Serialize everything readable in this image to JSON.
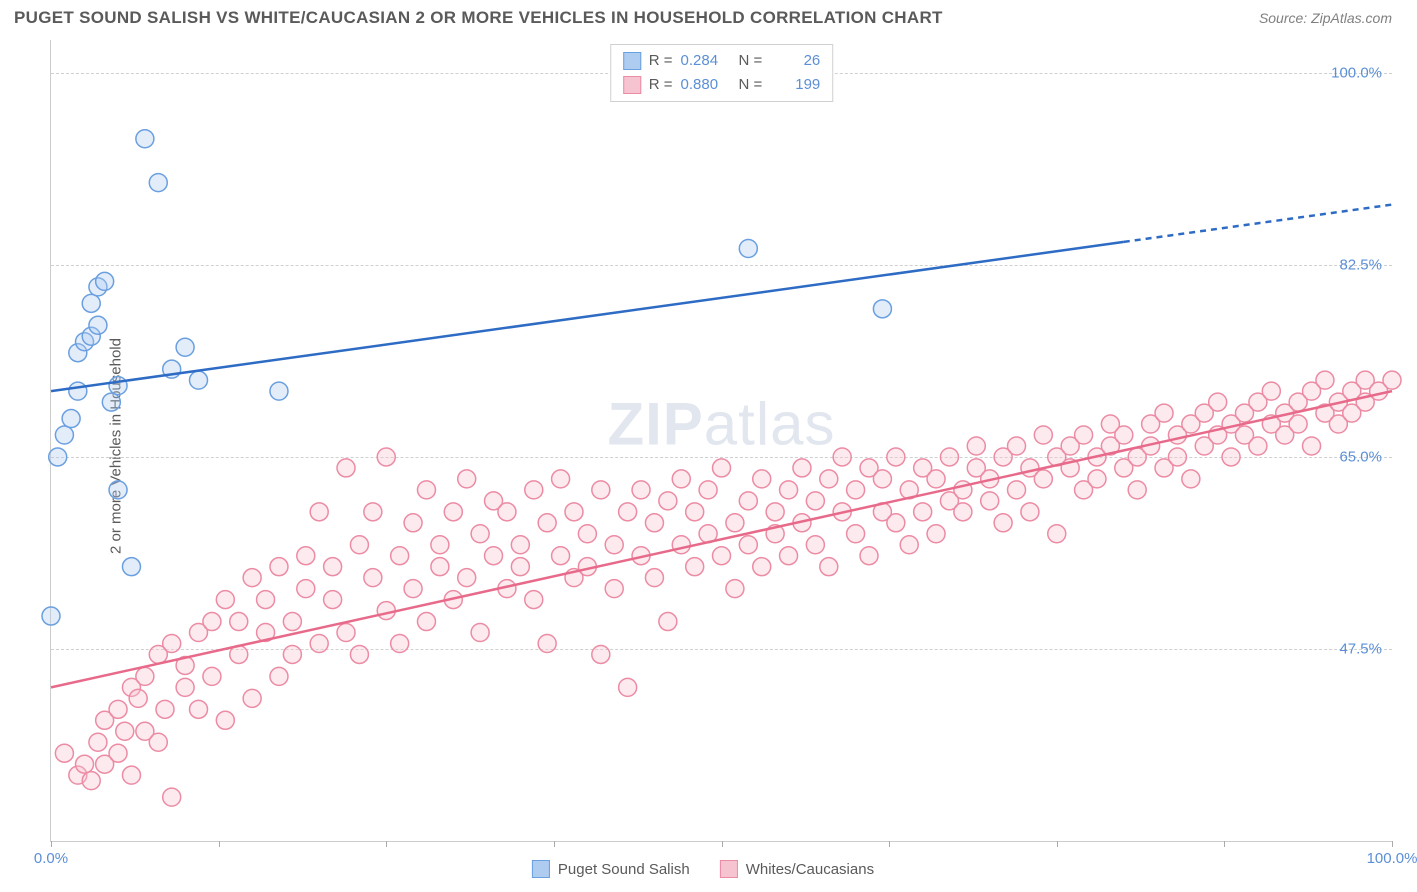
{
  "title": "PUGET SOUND SALISH VS WHITE/CAUCASIAN 2 OR MORE VEHICLES IN HOUSEHOLD CORRELATION CHART",
  "source": "Source: ZipAtlas.com",
  "watermark_bold": "ZIP",
  "watermark_light": "atlas",
  "chart": {
    "type": "scatter",
    "background_color": "#ffffff",
    "grid_color": "#d0d0d0",
    "axis_color": "#cccccc",
    "tick_label_color": "#5b8fd6",
    "ylabel": "2 or more Vehicles in Household",
    "xlim": [
      0,
      100
    ],
    "ylim": [
      30,
      103
    ],
    "x_ticks_minor": [
      0,
      12.5,
      25,
      37.5,
      50,
      62.5,
      75,
      87.5,
      100
    ],
    "x_tick_labels": [
      {
        "pos": 0,
        "label": "0.0%"
      },
      {
        "pos": 100,
        "label": "100.0%"
      }
    ],
    "y_gridlines": [
      47.5,
      65.0,
      82.5,
      100.0
    ],
    "y_tick_labels": [
      {
        "pos": 47.5,
        "label": "47.5%"
      },
      {
        "pos": 65.0,
        "label": "65.0%"
      },
      {
        "pos": 82.5,
        "label": "82.5%"
      },
      {
        "pos": 100.0,
        "label": "100.0%"
      }
    ],
    "marker_radius": 9,
    "line_width": 2.5,
    "series": [
      {
        "name": "Puget Sound Salish",
        "fill": "#aeccf0",
        "stroke": "#6a9fe0",
        "line_color": "#2d6bc4",
        "r_value": "0.284",
        "n_value": "26",
        "trend": {
          "x1": 0,
          "y1": 71,
          "x2": 100,
          "y2": 88,
          "solid_until_x": 80
        },
        "points": [
          [
            0,
            50.5
          ],
          [
            0.5,
            65
          ],
          [
            1,
            67
          ],
          [
            1.5,
            68.5
          ],
          [
            2,
            71
          ],
          [
            2,
            74.5
          ],
          [
            2.5,
            75.5
          ],
          [
            3,
            76
          ],
          [
            3.5,
            77
          ],
          [
            3,
            79
          ],
          [
            3.5,
            80.5
          ],
          [
            4,
            81
          ],
          [
            4.5,
            70
          ],
          [
            5,
            71.5
          ],
          [
            5,
            62
          ],
          [
            6,
            55
          ],
          [
            7,
            94
          ],
          [
            8,
            90
          ],
          [
            9,
            73
          ],
          [
            10,
            75
          ],
          [
            11,
            72
          ],
          [
            17,
            71
          ],
          [
            52,
            84
          ],
          [
            62,
            78.5
          ]
        ]
      },
      {
        "name": "Whites/Caucasians",
        "fill": "#f6c4d0",
        "stroke": "#ec8ba4",
        "line_color": "#e86a8a",
        "r_value": "0.880",
        "n_value": "199",
        "trend": {
          "x1": 0,
          "y1": 44,
          "x2": 100,
          "y2": 71,
          "solid_until_x": 100
        },
        "points": [
          [
            1,
            38
          ],
          [
            2,
            36
          ],
          [
            2.5,
            37
          ],
          [
            3,
            35.5
          ],
          [
            3.5,
            39
          ],
          [
            4,
            37
          ],
          [
            4,
            41
          ],
          [
            5,
            38
          ],
          [
            5,
            42
          ],
          [
            5.5,
            40
          ],
          [
            6,
            36
          ],
          [
            6,
            44
          ],
          [
            6.5,
            43
          ],
          [
            7,
            40
          ],
          [
            7,
            45
          ],
          [
            8,
            39
          ],
          [
            8,
            47
          ],
          [
            8.5,
            42
          ],
          [
            9,
            34
          ],
          [
            9,
            48
          ],
          [
            10,
            46
          ],
          [
            10,
            44
          ],
          [
            11,
            42
          ],
          [
            11,
            49
          ],
          [
            12,
            50
          ],
          [
            12,
            45
          ],
          [
            13,
            41
          ],
          [
            13,
            52
          ],
          [
            14,
            47
          ],
          [
            14,
            50
          ],
          [
            15,
            43
          ],
          [
            15,
            54
          ],
          [
            16,
            49
          ],
          [
            16,
            52
          ],
          [
            17,
            45
          ],
          [
            17,
            55
          ],
          [
            18,
            50
          ],
          [
            18,
            47
          ],
          [
            19,
            53
          ],
          [
            19,
            56
          ],
          [
            20,
            48
          ],
          [
            20,
            60
          ],
          [
            21,
            52
          ],
          [
            21,
            55
          ],
          [
            22,
            49
          ],
          [
            22,
            64
          ],
          [
            23,
            57
          ],
          [
            23,
            47
          ],
          [
            24,
            54
          ],
          [
            24,
            60
          ],
          [
            25,
            51
          ],
          [
            25,
            65
          ],
          [
            26,
            56
          ],
          [
            26,
            48
          ],
          [
            27,
            59
          ],
          [
            27,
            53
          ],
          [
            28,
            62
          ],
          [
            28,
            50
          ],
          [
            29,
            57
          ],
          [
            29,
            55
          ],
          [
            30,
            60
          ],
          [
            30,
            52
          ],
          [
            31,
            54
          ],
          [
            31,
            63
          ],
          [
            32,
            49
          ],
          [
            32,
            58
          ],
          [
            33,
            56
          ],
          [
            33,
            61
          ],
          [
            34,
            53
          ],
          [
            34,
            60
          ],
          [
            35,
            57
          ],
          [
            35,
            55
          ],
          [
            36,
            52
          ],
          [
            36,
            62
          ],
          [
            37,
            59
          ],
          [
            37,
            48
          ],
          [
            38,
            56
          ],
          [
            38,
            63
          ],
          [
            39,
            54
          ],
          [
            39,
            60
          ],
          [
            40,
            58
          ],
          [
            40,
            55
          ],
          [
            41,
            62
          ],
          [
            41,
            47
          ],
          [
            42,
            57
          ],
          [
            42,
            53
          ],
          [
            43,
            60
          ],
          [
            43,
            44
          ],
          [
            44,
            56
          ],
          [
            44,
            62
          ],
          [
            45,
            59
          ],
          [
            45,
            54
          ],
          [
            46,
            61
          ],
          [
            46,
            50
          ],
          [
            47,
            57
          ],
          [
            47,
            63
          ],
          [
            48,
            55
          ],
          [
            48,
            60
          ],
          [
            49,
            58
          ],
          [
            49,
            62
          ],
          [
            50,
            56
          ],
          [
            50,
            64
          ],
          [
            51,
            59
          ],
          [
            51,
            53
          ],
          [
            52,
            61
          ],
          [
            52,
            57
          ],
          [
            53,
            63
          ],
          [
            53,
            55
          ],
          [
            54,
            60
          ],
          [
            54,
            58
          ],
          [
            55,
            62
          ],
          [
            55,
            56
          ],
          [
            56,
            64
          ],
          [
            56,
            59
          ],
          [
            57,
            61
          ],
          [
            57,
            57
          ],
          [
            58,
            63
          ],
          [
            58,
            55
          ],
          [
            59,
            60
          ],
          [
            59,
            65
          ],
          [
            60,
            62
          ],
          [
            60,
            58
          ],
          [
            61,
            64
          ],
          [
            61,
            56
          ],
          [
            62,
            63
          ],
          [
            62,
            60
          ],
          [
            63,
            59
          ],
          [
            63,
            65
          ],
          [
            64,
            62
          ],
          [
            64,
            57
          ],
          [
            65,
            64
          ],
          [
            65,
            60
          ],
          [
            66,
            63
          ],
          [
            66,
            58
          ],
          [
            67,
            61
          ],
          [
            67,
            65
          ],
          [
            68,
            62
          ],
          [
            68,
            60
          ],
          [
            69,
            64
          ],
          [
            69,
            66
          ],
          [
            70,
            63
          ],
          [
            70,
            61
          ],
          [
            71,
            65
          ],
          [
            71,
            59
          ],
          [
            72,
            62
          ],
          [
            72,
            66
          ],
          [
            73,
            64
          ],
          [
            73,
            60
          ],
          [
            74,
            63
          ],
          [
            74,
            67
          ],
          [
            75,
            65
          ],
          [
            75,
            58
          ],
          [
            76,
            64
          ],
          [
            76,
            66
          ],
          [
            77,
            62
          ],
          [
            77,
            67
          ],
          [
            78,
            65
          ],
          [
            78,
            63
          ],
          [
            79,
            66
          ],
          [
            79,
            68
          ],
          [
            80,
            64
          ],
          [
            80,
            67
          ],
          [
            81,
            65
          ],
          [
            81,
            62
          ],
          [
            82,
            68
          ],
          [
            82,
            66
          ],
          [
            83,
            64
          ],
          [
            83,
            69
          ],
          [
            84,
            67
          ],
          [
            84,
            65
          ],
          [
            85,
            68
          ],
          [
            85,
            63
          ],
          [
            86,
            66
          ],
          [
            86,
            69
          ],
          [
            87,
            67
          ],
          [
            87,
            70
          ],
          [
            88,
            68
          ],
          [
            88,
            65
          ],
          [
            89,
            69
          ],
          [
            89,
            67
          ],
          [
            90,
            66
          ],
          [
            90,
            70
          ],
          [
            91,
            68
          ],
          [
            91,
            71
          ],
          [
            92,
            69
          ],
          [
            92,
            67
          ],
          [
            93,
            70
          ],
          [
            93,
            68
          ],
          [
            94,
            71
          ],
          [
            94,
            66
          ],
          [
            95,
            69
          ],
          [
            95,
            72
          ],
          [
            96,
            70
          ],
          [
            96,
            68
          ],
          [
            97,
            71
          ],
          [
            97,
            69
          ],
          [
            98,
            70
          ],
          [
            98,
            72
          ],
          [
            99,
            71
          ],
          [
            100,
            72
          ]
        ]
      }
    ]
  },
  "legend_bottom": [
    {
      "label": "Puget Sound Salish",
      "fill": "#aeccf0",
      "stroke": "#6a9fe0"
    },
    {
      "label": "Whites/Caucasians",
      "fill": "#f6c4d0",
      "stroke": "#ec8ba4"
    }
  ]
}
